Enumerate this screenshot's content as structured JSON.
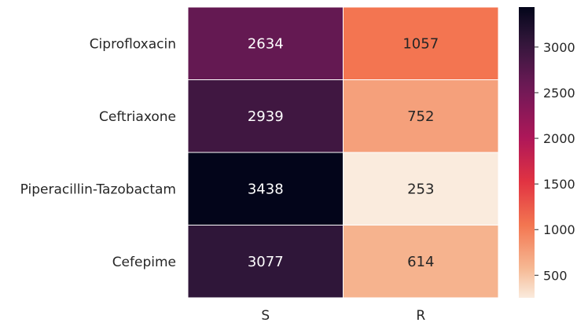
{
  "chart_data": {
    "type": "heatmap",
    "title": "",
    "xlabel": "",
    "ylabel": "",
    "rows": [
      "Ciprofloxacin",
      "Ceftriaxone",
      "Piperacillin-Tazobactam",
      "Cefepime"
    ],
    "columns": [
      "S",
      "R"
    ],
    "values": [
      [
        2634,
        1057
      ],
      [
        2939,
        752
      ],
      [
        3438,
        253
      ],
      [
        3077,
        614
      ]
    ],
    "annotations": true,
    "colormap": "rocket_r",
    "vmin": 253,
    "vmax": 3438,
    "colorbar": {
      "ticks": [
        500,
        1000,
        1500,
        2000,
        2500,
        3000
      ],
      "tick_labels": [
        "500",
        "1000",
        "1500",
        "2000",
        "2500",
        "3000"
      ],
      "placement": "right"
    },
    "grid": false,
    "cell_border_color": "#ffffff"
  }
}
